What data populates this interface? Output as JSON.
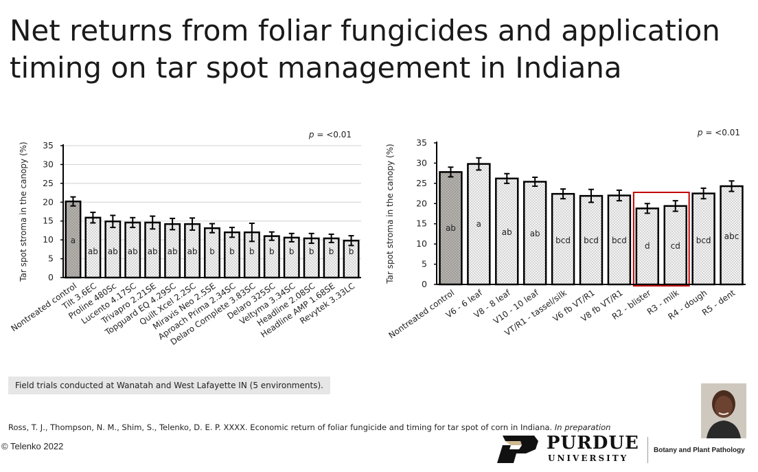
{
  "title": "Net returns from foliar fungicides and application timing on tar spot management in Indiana",
  "footnote": "Field trials conducted at Wanatah and West Lafayette IN (5 environments).",
  "citation": {
    "text": "Ross, T. J., Thompson, N. M., Shim, S., Telenko, D. E. P. XXXX. Economic return of foliar fungicide and timing for tar spot of corn in Indiana.",
    "italic": "In preparation"
  },
  "copyright": "© Telenko 2022",
  "logo": {
    "word": "PURDUE",
    "sub": "UNIVERSITY",
    "icon": "purdue-p-logo"
  },
  "department": "Botany and Plant Pathology",
  "photo": {
    "icon": "presenter-portrait"
  },
  "colors": {
    "control": "#a09c98",
    "treatment": "#f4f4f4",
    "bar_stroke": "#000000",
    "highlight": "#c00000",
    "grid": "#d0d0d0"
  },
  "chart_data": [
    {
      "type": "bar",
      "ylabel": "Tar spot stroma in the canopy (%)",
      "p_label": "p",
      "p_value": " = <0.01",
      "ylim": [
        0,
        35
      ],
      "yticks": [
        0,
        5,
        10,
        15,
        20,
        25,
        30,
        35
      ],
      "grid": true,
      "categories": [
        "Nontreated control",
        "Tilt 3.6EC",
        "Proline 480Sc",
        "Lucento 4.17SC",
        "Trivapro 2.21SE",
        "Topguard EQ 4.29SC",
        "Quilt Xcel 2.2SC",
        "Miravis Neo 2.5SE",
        "Aproach Prima 2.34SC",
        "Delaro Complete 3.83SC",
        "Delaro 325SC",
        "Veltyma 3.34SC",
        "Headline 2.08SC",
        "Headline AMP 1.68SE",
        "Revytek 3.33LC"
      ],
      "values": [
        20.2,
        15.9,
        14.9,
        14.6,
        14.6,
        14.2,
        14.2,
        13.1,
        12.0,
        12.0,
        11.0,
        10.6,
        10.4,
        10.4,
        9.8
      ],
      "errors": [
        1.2,
        1.4,
        1.6,
        1.3,
        1.7,
        1.5,
        1.6,
        1.2,
        1.3,
        2.4,
        1.1,
        1.1,
        1.3,
        1.1,
        1.3
      ],
      "letters": [
        "a",
        "ab",
        "ab",
        "ab",
        "ab",
        "ab",
        "ab",
        "b",
        "b",
        "b",
        "b",
        "b",
        "b",
        "b",
        "b"
      ]
    },
    {
      "type": "bar",
      "ylabel": "Tar spot stroma in the canopy (%)",
      "p_label": "p",
      "p_value": " = <0.01",
      "ylim": [
        0,
        35
      ],
      "yticks": [
        0,
        5,
        10,
        15,
        20,
        25,
        30,
        35
      ],
      "grid": false,
      "categories": [
        "Nontreated control",
        "V6 - 6 leaf",
        "V8 - 8 leaf",
        "V10 - 10 leaf",
        "VT/R1 - tassel/silk",
        "V6 fb VT/R1",
        "V8 fb VT/R1",
        "R2 - blister",
        "R3 - milk",
        "R4 - dough",
        "R5 - dent"
      ],
      "values": [
        27.8,
        29.8,
        26.2,
        25.4,
        22.4,
        21.9,
        22.0,
        18.8,
        19.4,
        22.5,
        24.3
      ],
      "errors": [
        1.2,
        1.5,
        1.2,
        1.1,
        1.2,
        1.6,
        1.3,
        1.2,
        1.3,
        1.3,
        1.3
      ],
      "letters": [
        "ab",
        "a",
        "ab",
        "ab",
        "bcd",
        "bcd",
        "bcd",
        "d",
        "cd",
        "bcd",
        "abc"
      ],
      "highlight": [
        "R2 - blister",
        "R3 - milk"
      ]
    }
  ]
}
